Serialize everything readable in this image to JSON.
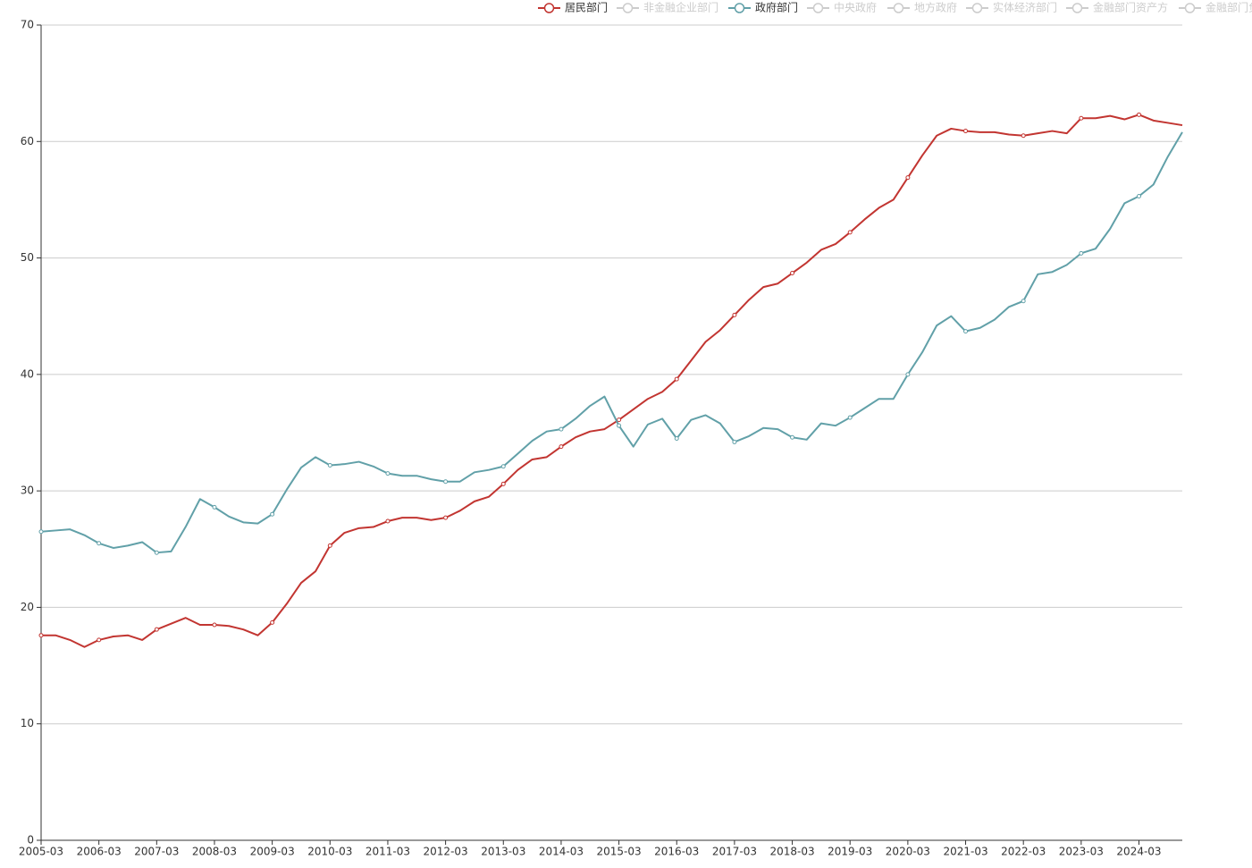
{
  "chart_data": {
    "type": "line",
    "categories": [
      "2005-03",
      null,
      null,
      null,
      "2006-03",
      null,
      null,
      null,
      "2007-03",
      null,
      null,
      null,
      "2008-03",
      null,
      null,
      null,
      "2009-03",
      null,
      null,
      null,
      "2010-03",
      null,
      null,
      null,
      "2011-03",
      null,
      null,
      null,
      "2012-03",
      null,
      null,
      null,
      "2013-03",
      null,
      null,
      null,
      "2014-03",
      null,
      null,
      null,
      "2015-03",
      null,
      null,
      null,
      "2016-03",
      null,
      null,
      null,
      "2017-03",
      null,
      null,
      null,
      "2018-03",
      null,
      null,
      null,
      "2019-03",
      null,
      null,
      null,
      "2020-03",
      null,
      null,
      null,
      "2021-03",
      null,
      null,
      null,
      "2022-03",
      null,
      null,
      null,
      "2023-03",
      null,
      null,
      null,
      "2024-03",
      null,
      null,
      null
    ],
    "ylim": [
      0,
      70
    ],
    "yticks": [
      0,
      10,
      20,
      30,
      40,
      50,
      60,
      70
    ],
    "grid": true,
    "legend_position": "top-right",
    "series": [
      {
        "name": "居民部门",
        "color": "#c23531",
        "values": [
          17.6,
          17.6,
          17.2,
          16.6,
          17.2,
          17.5,
          17.6,
          17.2,
          18.1,
          18.6,
          19.1,
          18.5,
          18.5,
          18.4,
          18.1,
          17.6,
          18.7,
          20.3,
          22.1,
          23.1,
          25.3,
          26.4,
          26.8,
          26.9,
          27.4,
          27.7,
          27.7,
          27.5,
          27.7,
          28.3,
          29.1,
          29.5,
          30.6,
          31.8,
          32.7,
          32.9,
          33.8,
          34.6,
          35.1,
          35.3,
          36.1,
          37.0,
          37.9,
          38.5,
          39.6,
          41.2,
          42.8,
          43.8,
          45.1,
          46.4,
          47.5,
          47.8,
          48.7,
          49.6,
          50.7,
          51.2,
          52.2,
          53.3,
          54.3,
          55.0,
          56.9,
          58.8,
          60.5,
          61.1,
          60.9,
          60.8,
          60.8,
          60.6,
          60.5,
          60.7,
          60.9,
          60.7,
          62.0,
          62.0,
          62.2,
          61.9,
          62.3,
          61.8,
          61.6,
          61.4
        ]
      },
      {
        "name": "非金融企业部门",
        "color": "#cccccc",
        "selected": false
      },
      {
        "name": "政府部门",
        "color": "#61a0a8",
        "values": [
          26.5,
          26.6,
          26.7,
          26.2,
          25.5,
          25.1,
          25.3,
          25.6,
          24.7,
          24.8,
          26.9,
          29.3,
          28.6,
          27.8,
          27.3,
          27.2,
          28.0,
          30.1,
          32.0,
          32.9,
          32.2,
          32.3,
          32.5,
          32.1,
          31.5,
          31.3,
          31.3,
          31.0,
          30.8,
          30.8,
          31.6,
          31.8,
          32.1,
          33.2,
          34.3,
          35.1,
          35.3,
          36.2,
          37.3,
          38.1,
          35.6,
          33.8,
          35.7,
          36.2,
          34.5,
          36.1,
          36.5,
          35.8,
          34.2,
          34.7,
          35.4,
          35.3,
          34.6,
          34.4,
          35.8,
          35.6,
          36.3,
          37.1,
          37.9,
          37.9,
          40.0,
          41.9,
          44.2,
          45.0,
          43.7,
          44.0,
          44.7,
          45.8,
          46.3,
          48.6,
          48.8,
          49.4,
          50.4,
          50.8,
          52.5,
          54.7,
          55.3,
          56.3,
          58.7,
          60.8
        ]
      },
      {
        "name": "中央政府",
        "color": "#cccccc",
        "selected": false
      },
      {
        "name": "地方政府",
        "color": "#cccccc",
        "selected": false
      },
      {
        "name": "实体经济部门",
        "color": "#cccccc",
        "selected": false
      },
      {
        "name": "金融部门资产方",
        "color": "#cccccc",
        "selected": false
      },
      {
        "name": "金融部门负债方",
        "color": "#cccccc",
        "selected": false
      }
    ]
  }
}
